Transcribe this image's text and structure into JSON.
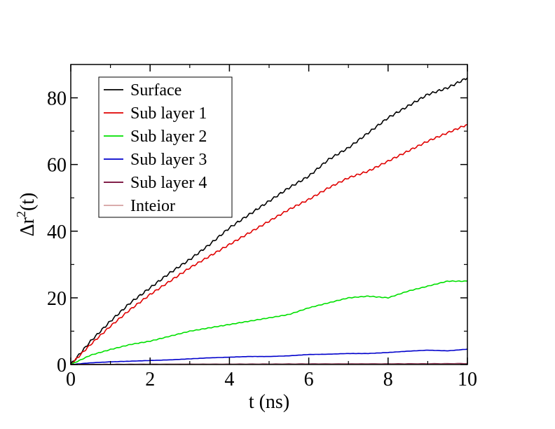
{
  "chart_data": {
    "type": "line",
    "xlabel": "t (ns)",
    "ylabel": {
      "delta": "Δr",
      "superscript": "2",
      "suffix": "(t)"
    },
    "xlim": [
      0,
      10
    ],
    "ylim": [
      0,
      90
    ],
    "x_ticks": [
      0,
      2,
      4,
      6,
      8,
      10
    ],
    "y_ticks": [
      0,
      20,
      40,
      60,
      80
    ],
    "grid": false,
    "legend_position": "top-left",
    "series": [
      {
        "name": "Surface",
        "color": "#000000",
        "x": [
          0,
          0.5,
          1,
          1.5,
          2,
          2.5,
          3,
          3.5,
          4,
          4.5,
          5,
          5.5,
          6,
          6.5,
          7,
          7.5,
          8,
          8.5,
          9,
          9.5,
          10
        ],
        "y": [
          0,
          7,
          13,
          18.5,
          23,
          27.5,
          31.5,
          36,
          41,
          45,
          49,
          53,
          56.5,
          61.5,
          65,
          69.5,
          74,
          77.5,
          81,
          83,
          86
        ]
      },
      {
        "name": "Sub layer 1",
        "color": "#e00000",
        "x": [
          0,
          0.5,
          1,
          1.5,
          2,
          2.5,
          3,
          3.5,
          4,
          4.5,
          5,
          5.5,
          6,
          6.5,
          7,
          7.5,
          8,
          8.5,
          9,
          9.5,
          10
        ],
        "y": [
          0,
          6,
          11.5,
          16.5,
          21,
          25,
          29,
          32.5,
          36,
          39.5,
          43,
          46.5,
          49.5,
          53,
          56,
          58,
          61,
          64,
          67,
          69.5,
          72
        ]
      },
      {
        "name": "Sub layer 2",
        "color": "#00e000",
        "x": [
          0,
          0.5,
          1,
          1.5,
          2,
          2.5,
          3,
          3.5,
          4,
          4.5,
          5,
          5.5,
          6,
          6.5,
          7,
          7.5,
          8,
          8.5,
          9,
          9.5,
          10
        ],
        "y": [
          0,
          2.8,
          4.5,
          6,
          7,
          8.5,
          10,
          11,
          12,
          13,
          14,
          15,
          17,
          18.5,
          20,
          20.5,
          20,
          22,
          23.5,
          25,
          25
        ]
      },
      {
        "name": "Sub layer 3",
        "color": "#0000cc",
        "x": [
          0,
          0.5,
          1,
          1.5,
          2,
          2.5,
          3,
          3.5,
          4,
          4.5,
          5,
          5.5,
          6,
          6.5,
          7,
          7.5,
          8,
          8.5,
          9,
          9.5,
          10
        ],
        "y": [
          0,
          0.5,
          0.8,
          1,
          1.2,
          1.4,
          1.7,
          2,
          2.2,
          2.4,
          2.4,
          2.6,
          3,
          3.1,
          3.3,
          3.3,
          3.6,
          4,
          4.3,
          4.1,
          4.6
        ]
      },
      {
        "name": "Sub layer 4",
        "color": "#700030",
        "x": [
          0,
          1,
          2,
          3,
          4,
          5,
          6,
          7,
          8,
          9,
          10
        ],
        "y": [
          0,
          0.05,
          0.08,
          0.1,
          0.12,
          0.15,
          0.18,
          0.2,
          0.22,
          0.25,
          0.28
        ]
      },
      {
        "name": "Inteior",
        "color": "#d4a0a0",
        "x": [
          0,
          1,
          2,
          3,
          4,
          5,
          6,
          7,
          8,
          9,
          10
        ],
        "y": [
          0,
          0.02,
          0.04,
          0.05,
          0.06,
          0.07,
          0.08,
          0.09,
          0.1,
          0.11,
          0.12
        ]
      }
    ]
  }
}
